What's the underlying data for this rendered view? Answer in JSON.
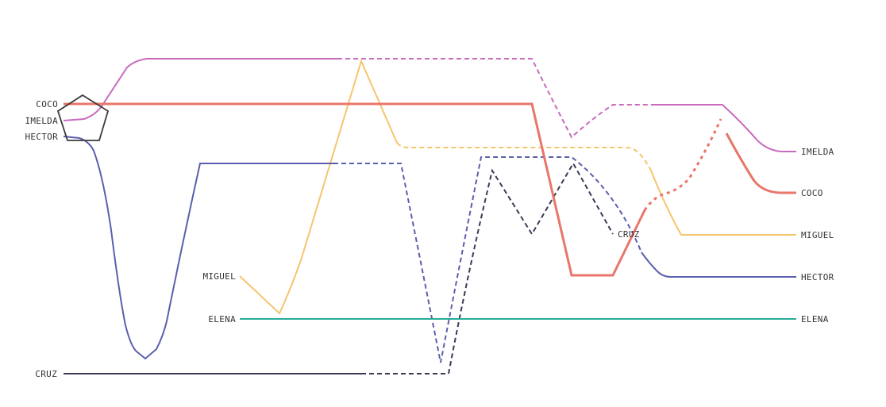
{
  "characters": [
    {
      "id": "coco",
      "name": "COCO",
      "color": "#e8766a"
    },
    {
      "id": "imelda",
      "name": "IMELDA",
      "color": "#c86bbd"
    },
    {
      "id": "hector",
      "name": "HECTOR",
      "color": "#5b5fad"
    },
    {
      "id": "miguel",
      "name": "MIGUEL",
      "color": "#f5c56e"
    },
    {
      "id": "elena",
      "name": "ELENA",
      "color": "#2aac9a"
    },
    {
      "id": "cruz",
      "name": "CRUZ",
      "color": "#3b3a55"
    }
  ],
  "group_marker": {
    "shape": "pentagon",
    "color": "#3a3a3a"
  }
}
